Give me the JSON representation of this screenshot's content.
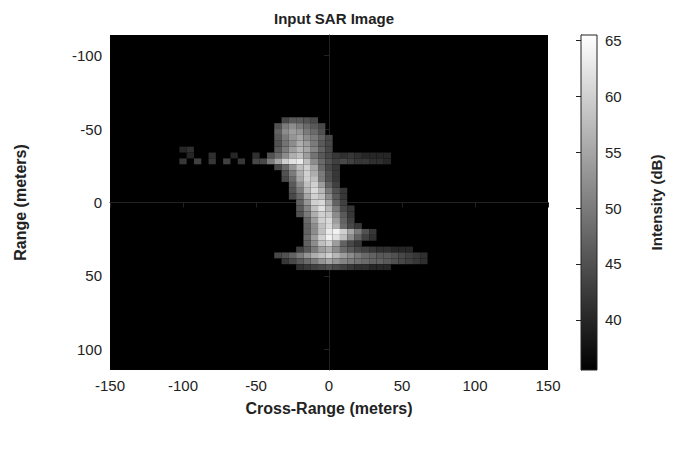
{
  "chart_data": {
    "type": "heatmap",
    "title": "Input SAR Image",
    "x_label": "Cross-Range (meters)",
    "y_label": "Range (meters)",
    "xlim": [
      -150,
      150
    ],
    "xticks": [
      -150,
      -100,
      -50,
      0,
      50,
      100,
      150
    ],
    "ylim": [
      -114,
      114
    ],
    "yticks": [
      -100,
      -50,
      0,
      50,
      100
    ],
    "grid": false,
    "cell_size": [
      5,
      4
    ],
    "cells": [
      [
        -30,
        -56,
        44
      ],
      [
        -25,
        -56,
        46
      ],
      [
        -20,
        -56,
        46
      ],
      [
        -15,
        -56,
        45
      ],
      [
        -10,
        -56,
        44
      ],
      [
        -35,
        -52,
        45
      ],
      [
        -30,
        -52,
        50
      ],
      [
        -25,
        -52,
        52
      ],
      [
        -20,
        -52,
        50
      ],
      [
        -15,
        -52,
        48
      ],
      [
        -10,
        -52,
        46
      ],
      [
        -5,
        -52,
        44
      ],
      [
        -35,
        -48,
        47
      ],
      [
        -30,
        -48,
        52
      ],
      [
        -25,
        -48,
        54
      ],
      [
        -20,
        -48,
        53
      ],
      [
        -15,
        -48,
        50
      ],
      [
        -10,
        -48,
        48
      ],
      [
        -5,
        -48,
        45
      ],
      [
        -35,
        -44,
        46
      ],
      [
        -30,
        -44,
        50
      ],
      [
        -25,
        -44,
        53
      ],
      [
        -20,
        -44,
        55
      ],
      [
        -15,
        -44,
        52
      ],
      [
        -10,
        -44,
        50
      ],
      [
        -5,
        -44,
        47
      ],
      [
        0,
        -44,
        44
      ],
      [
        -35,
        -40,
        45
      ],
      [
        -30,
        -40,
        49
      ],
      [
        -25,
        -40,
        52
      ],
      [
        -20,
        -40,
        56
      ],
      [
        -15,
        -40,
        54
      ],
      [
        -10,
        -40,
        50
      ],
      [
        -5,
        -40,
        46
      ],
      [
        0,
        -40,
        44
      ],
      [
        -100,
        -36,
        40
      ],
      [
        -95,
        -36,
        41
      ],
      [
        -35,
        -36,
        46
      ],
      [
        -30,
        -36,
        50
      ],
      [
        -25,
        -36,
        54
      ],
      [
        -20,
        -36,
        57
      ],
      [
        -15,
        -36,
        55
      ],
      [
        -10,
        -36,
        51
      ],
      [
        -5,
        -36,
        47
      ],
      [
        0,
        -36,
        44
      ],
      [
        -95,
        -32,
        40
      ],
      [
        -80,
        -32,
        41
      ],
      [
        -65,
        -32,
        40
      ],
      [
        -50,
        -32,
        41
      ],
      [
        -40,
        -32,
        45
      ],
      [
        -35,
        -32,
        48
      ],
      [
        -30,
        -32,
        52
      ],
      [
        -25,
        -32,
        56
      ],
      [
        -20,
        -32,
        58
      ],
      [
        -15,
        -32,
        54
      ],
      [
        -10,
        -32,
        49
      ],
      [
        -5,
        -32,
        46
      ],
      [
        0,
        -32,
        44
      ],
      [
        5,
        -32,
        42
      ],
      [
        10,
        -32,
        41
      ],
      [
        15,
        -32,
        42
      ],
      [
        20,
        -32,
        41
      ],
      [
        25,
        -32,
        40
      ],
      [
        30,
        -32,
        40
      ],
      [
        35,
        -32,
        40
      ],
      [
        40,
        -32,
        40
      ],
      [
        -100,
        -28,
        42
      ],
      [
        -90,
        -28,
        43
      ],
      [
        -80,
        -28,
        42
      ],
      [
        -70,
        -28,
        43
      ],
      [
        -60,
        -28,
        42
      ],
      [
        -50,
        -28,
        44
      ],
      [
        -45,
        -28,
        44
      ],
      [
        -40,
        -28,
        50
      ],
      [
        -35,
        -28,
        55
      ],
      [
        -30,
        -28,
        60
      ],
      [
        -25,
        -28,
        62
      ],
      [
        -20,
        -28,
        63
      ],
      [
        -15,
        -28,
        58
      ],
      [
        -10,
        -28,
        52
      ],
      [
        -5,
        -28,
        48
      ],
      [
        0,
        -28,
        45
      ],
      [
        5,
        -28,
        43
      ],
      [
        10,
        -28,
        44
      ],
      [
        15,
        -28,
        43
      ],
      [
        20,
        -28,
        42
      ],
      [
        25,
        -28,
        42
      ],
      [
        30,
        -28,
        41
      ],
      [
        35,
        -28,
        41
      ],
      [
        40,
        -28,
        40
      ],
      [
        -35,
        -24,
        44
      ],
      [
        -30,
        -24,
        48
      ],
      [
        -25,
        -24,
        53
      ],
      [
        -20,
        -24,
        58
      ],
      [
        -15,
        -24,
        60
      ],
      [
        -10,
        -24,
        55
      ],
      [
        -5,
        -24,
        48
      ],
      [
        0,
        -24,
        44
      ],
      [
        5,
        -24,
        42
      ],
      [
        -30,
        -20,
        45
      ],
      [
        -25,
        -20,
        50
      ],
      [
        -20,
        -20,
        56
      ],
      [
        -15,
        -20,
        60
      ],
      [
        -10,
        -20,
        56
      ],
      [
        -5,
        -20,
        50
      ],
      [
        0,
        -20,
        45
      ],
      [
        5,
        -20,
        42
      ],
      [
        -30,
        -16,
        44
      ],
      [
        -25,
        -16,
        48
      ],
      [
        -20,
        -16,
        55
      ],
      [
        -15,
        -16,
        60
      ],
      [
        -10,
        -16,
        58
      ],
      [
        -5,
        -16,
        50
      ],
      [
        0,
        -16,
        45
      ],
      [
        5,
        -16,
        42
      ],
      [
        -25,
        -12,
        46
      ],
      [
        -20,
        -12,
        52
      ],
      [
        -15,
        -12,
        58
      ],
      [
        -10,
        -12,
        60
      ],
      [
        -5,
        -12,
        54
      ],
      [
        0,
        -12,
        47
      ],
      [
        5,
        -12,
        43
      ],
      [
        -25,
        -8,
        45
      ],
      [
        -20,
        -8,
        50
      ],
      [
        -15,
        -8,
        57
      ],
      [
        -10,
        -8,
        61
      ],
      [
        -5,
        -8,
        57
      ],
      [
        0,
        -8,
        50
      ],
      [
        5,
        -8,
        45
      ],
      [
        10,
        -8,
        42
      ],
      [
        -25,
        -4,
        44
      ],
      [
        -20,
        -4,
        48
      ],
      [
        -15,
        -4,
        55
      ],
      [
        -10,
        -4,
        60
      ],
      [
        -5,
        -4,
        58
      ],
      [
        0,
        -4,
        52
      ],
      [
        5,
        -4,
        46
      ],
      [
        10,
        -4,
        42
      ],
      [
        -20,
        0,
        47
      ],
      [
        -15,
        0,
        53
      ],
      [
        -10,
        0,
        60
      ],
      [
        -5,
        0,
        61
      ],
      [
        0,
        0,
        55
      ],
      [
        5,
        0,
        47
      ],
      [
        10,
        0,
        43
      ],
      [
        -20,
        4,
        46
      ],
      [
        -15,
        4,
        51
      ],
      [
        -10,
        4,
        58
      ],
      [
        -5,
        4,
        62
      ],
      [
        0,
        4,
        57
      ],
      [
        5,
        4,
        50
      ],
      [
        10,
        4,
        44
      ],
      [
        15,
        4,
        42
      ],
      [
        -20,
        8,
        45
      ],
      [
        -15,
        8,
        50
      ],
      [
        -10,
        8,
        56
      ],
      [
        -5,
        8,
        60
      ],
      [
        0,
        8,
        59
      ],
      [
        5,
        8,
        52
      ],
      [
        10,
        8,
        46
      ],
      [
        15,
        8,
        42
      ],
      [
        -15,
        12,
        48
      ],
      [
        -10,
        12,
        54
      ],
      [
        -5,
        12,
        60
      ],
      [
        0,
        12,
        61
      ],
      [
        5,
        12,
        54
      ],
      [
        10,
        12,
        47
      ],
      [
        15,
        12,
        43
      ],
      [
        -15,
        16,
        47
      ],
      [
        -10,
        16,
        52
      ],
      [
        -5,
        16,
        58
      ],
      [
        0,
        16,
        61
      ],
      [
        5,
        16,
        56
      ],
      [
        10,
        16,
        48
      ],
      [
        15,
        16,
        44
      ],
      [
        20,
        16,
        42
      ],
      [
        -15,
        20,
        47
      ],
      [
        -10,
        20,
        52
      ],
      [
        -5,
        20,
        58
      ],
      [
        0,
        20,
        63
      ],
      [
        5,
        20,
        64
      ],
      [
        10,
        20,
        60
      ],
      [
        15,
        20,
        55
      ],
      [
        20,
        20,
        50
      ],
      [
        25,
        20,
        45
      ],
      [
        30,
        20,
        42
      ],
      [
        -15,
        24,
        48
      ],
      [
        -10,
        24,
        54
      ],
      [
        -5,
        24,
        60
      ],
      [
        0,
        24,
        64
      ],
      [
        5,
        24,
        62
      ],
      [
        10,
        24,
        58
      ],
      [
        15,
        24,
        52
      ],
      [
        20,
        24,
        47
      ],
      [
        25,
        24,
        43
      ],
      [
        30,
        24,
        41
      ],
      [
        -15,
        28,
        47
      ],
      [
        -10,
        28,
        52
      ],
      [
        -5,
        28,
        58
      ],
      [
        0,
        28,
        60
      ],
      [
        5,
        28,
        54
      ],
      [
        10,
        28,
        47
      ],
      [
        15,
        28,
        44
      ],
      [
        20,
        28,
        42
      ],
      [
        -20,
        32,
        43
      ],
      [
        -15,
        32,
        46
      ],
      [
        -10,
        32,
        50
      ],
      [
        -5,
        32,
        54
      ],
      [
        0,
        32,
        56
      ],
      [
        5,
        32,
        52
      ],
      [
        10,
        32,
        48
      ],
      [
        15,
        32,
        46
      ],
      [
        20,
        32,
        44
      ],
      [
        25,
        32,
        43
      ],
      [
        30,
        32,
        42
      ],
      [
        35,
        32,
        41
      ],
      [
        40,
        32,
        41
      ],
      [
        45,
        32,
        40
      ],
      [
        50,
        32,
        40
      ],
      [
        55,
        32,
        40
      ],
      [
        -35,
        36,
        44
      ],
      [
        -30,
        36,
        45
      ],
      [
        -25,
        36,
        47
      ],
      [
        -20,
        36,
        50
      ],
      [
        -15,
        36,
        53
      ],
      [
        -10,
        36,
        56
      ],
      [
        -5,
        36,
        58
      ],
      [
        0,
        36,
        60
      ],
      [
        5,
        36,
        57
      ],
      [
        10,
        36,
        54
      ],
      [
        15,
        36,
        52
      ],
      [
        20,
        36,
        50
      ],
      [
        25,
        36,
        48
      ],
      [
        30,
        36,
        47
      ],
      [
        35,
        36,
        46
      ],
      [
        40,
        36,
        46
      ],
      [
        45,
        36,
        45
      ],
      [
        50,
        36,
        44
      ],
      [
        55,
        36,
        43
      ],
      [
        60,
        36,
        42
      ],
      [
        65,
        36,
        41
      ],
      [
        -30,
        40,
        42
      ],
      [
        -25,
        40,
        44
      ],
      [
        -20,
        40,
        46
      ],
      [
        -15,
        40,
        48
      ],
      [
        -10,
        40,
        50
      ],
      [
        -5,
        40,
        53
      ],
      [
        0,
        40,
        55
      ],
      [
        5,
        40,
        53
      ],
      [
        10,
        40,
        51
      ],
      [
        15,
        40,
        50
      ],
      [
        20,
        40,
        49
      ],
      [
        25,
        40,
        48
      ],
      [
        30,
        40,
        47
      ],
      [
        35,
        40,
        47
      ],
      [
        40,
        40,
        46
      ],
      [
        45,
        40,
        45
      ],
      [
        50,
        40,
        44
      ],
      [
        55,
        40,
        43
      ],
      [
        60,
        40,
        42
      ],
      [
        65,
        40,
        41
      ],
      [
        -20,
        44,
        41
      ],
      [
        -15,
        44,
        42
      ],
      [
        -10,
        44,
        43
      ],
      [
        -5,
        44,
        44
      ],
      [
        0,
        44,
        45
      ],
      [
        5,
        44,
        44
      ],
      [
        10,
        44,
        43
      ],
      [
        15,
        44,
        42
      ],
      [
        20,
        44,
        41
      ],
      [
        25,
        44,
        41
      ],
      [
        30,
        44,
        40
      ],
      [
        35,
        44,
        40
      ],
      [
        40,
        44,
        40
      ]
    ],
    "colorbar": {
      "label": "Intensity (dB)",
      "range": [
        35.5,
        65.5
      ],
      "ticks": [
        40,
        45,
        50,
        55,
        60,
        65
      ]
    }
  }
}
